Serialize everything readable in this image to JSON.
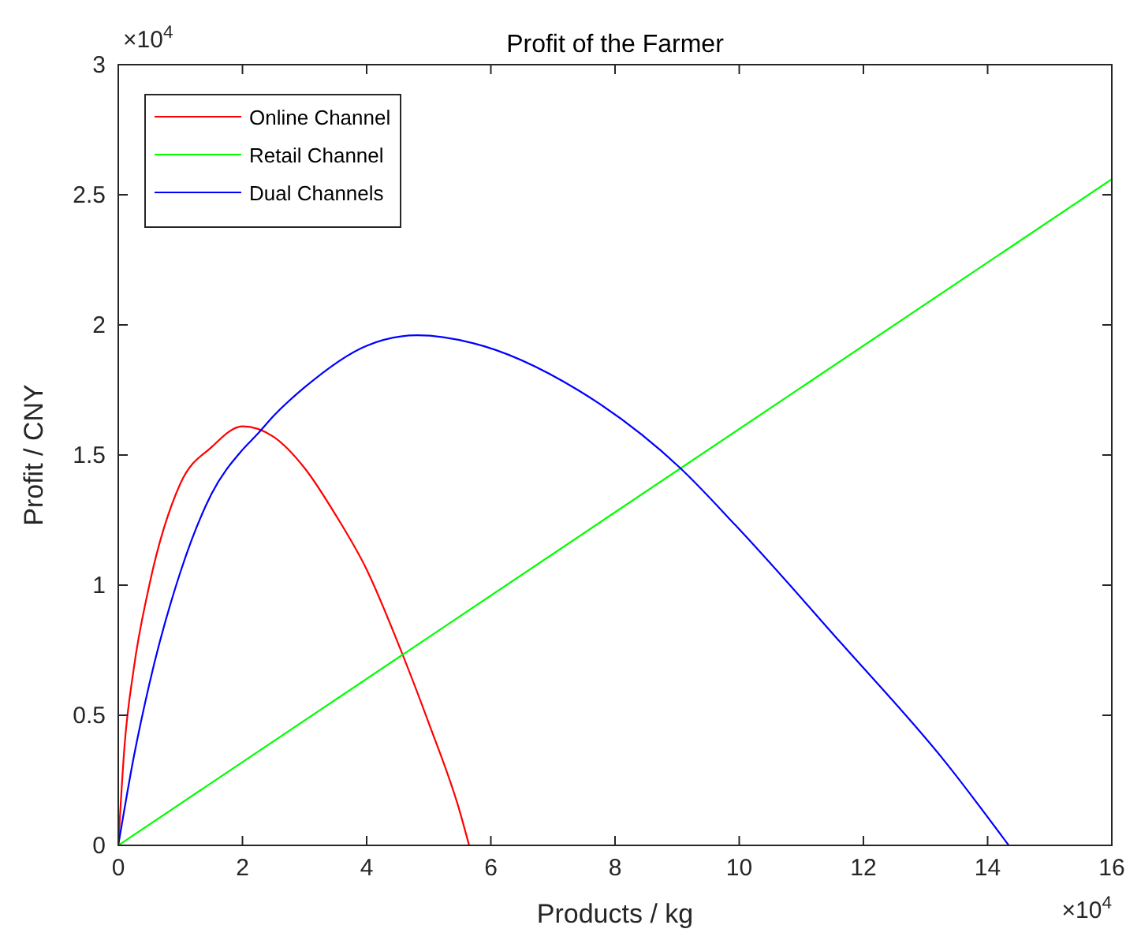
{
  "chart_data": {
    "type": "line",
    "title": "Profit of the Farmer",
    "xlabel": "Products / kg",
    "ylabel": "Profit / CNY",
    "annotations": [
      "×10$^{4}$",
      "×10$^{4}$"
    ],
    "xlim": [
      0,
      16
    ],
    "ylim": [
      0,
      3
    ],
    "xticks": [
      0,
      2,
      4,
      6,
      8,
      10,
      12,
      14,
      16
    ],
    "yticks": [
      0,
      0.5,
      1,
      1.5,
      2,
      2.5,
      3
    ],
    "grid": false,
    "legend": "top left",
    "marker": "none",
    "line_style": "solid",
    "series": [
      {
        "name": "Online Channel",
        "color": "#ff0000",
        "x": [
          0,
          0.1,
          0.25,
          0.5,
          1,
          1.5,
          2,
          2.5,
          3,
          3.5,
          4,
          4.5,
          5,
          5.5,
          5.65
        ],
        "values": [
          0,
          0.38,
          0.68,
          1.0,
          1.39,
          1.53,
          1.61,
          1.57,
          1.45,
          1.27,
          1.06,
          0.78,
          0.47,
          0.13,
          0
        ]
      },
      {
        "name": "Retail Channel",
        "color": "#00ff00",
        "x": [
          0,
          16
        ],
        "values": [
          0,
          2.56
        ]
      },
      {
        "name": "Dual Channels",
        "color": "#0000ff",
        "x": [
          0,
          0.25,
          0.5,
          1,
          1.5,
          2,
          2.24,
          2.5,
          3,
          4,
          4.82,
          5.71,
          7.4,
          9.05,
          9.94,
          11.63,
          13.32,
          14.34
        ],
        "values": [
          0,
          0.34,
          0.62,
          1.05,
          1.35,
          1.52,
          1.58,
          1.65,
          1.76,
          1.92,
          1.96,
          1.93,
          1.75,
          1.45,
          1.23,
          0.78,
          0.32,
          0
        ]
      }
    ]
  }
}
